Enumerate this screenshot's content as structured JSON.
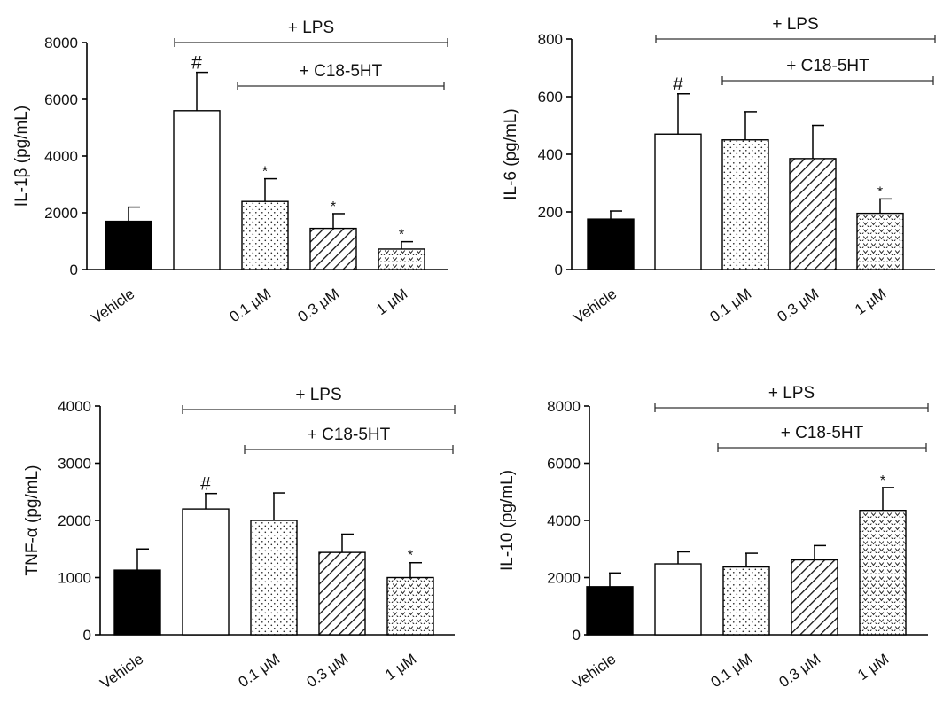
{
  "chart_data": [
    {
      "type": "bar",
      "panel": "top-left",
      "ylabel": "IL-1β (pg/mL)",
      "ylim": [
        0,
        8000
      ],
      "yticks": [
        0,
        2000,
        4000,
        6000,
        8000
      ],
      "categories": [
        "Vehicle",
        "",
        "0.1 μM",
        "0.3 μM",
        "1 μM"
      ],
      "values": [
        1700,
        5600,
        2400,
        1450,
        720
      ],
      "errors": [
        500,
        1350,
        800,
        520,
        260
      ],
      "fills": [
        "solid",
        "white",
        "dots",
        "hatch",
        "hearts"
      ],
      "annotations": [
        "",
        "#",
        "*",
        "*",
        "*"
      ],
      "brackets": [
        {
          "label": "+ LPS",
          "from": 1,
          "to": 4
        },
        {
          "label": "+ C18-5HT",
          "from": 2,
          "to": 4
        }
      ]
    },
    {
      "type": "bar",
      "panel": "top-right",
      "ylabel": "IL-6 (pg/mL)",
      "ylim": [
        0,
        800
      ],
      "yticks": [
        0,
        200,
        400,
        600,
        800
      ],
      "categories": [
        "Vehicle",
        "",
        "0.1 μM",
        "0.3 μM",
        "1 μM"
      ],
      "values": [
        175,
        470,
        450,
        385,
        195
      ],
      "errors": [
        28,
        140,
        98,
        115,
        50
      ],
      "fills": [
        "solid",
        "white",
        "dots",
        "hatch",
        "hearts"
      ],
      "annotations": [
        "",
        "#",
        "",
        "",
        "*"
      ],
      "brackets": [
        {
          "label": "+ LPS",
          "from": 1,
          "to": 4
        },
        {
          "label": "+ C18-5HT",
          "from": 2,
          "to": 4
        }
      ]
    },
    {
      "type": "bar",
      "panel": "bottom-left",
      "ylabel": "TNF-α (pg/mL)",
      "ylim": [
        0,
        4000
      ],
      "yticks": [
        0,
        1000,
        2000,
        3000,
        4000
      ],
      "categories": [
        "Vehicle",
        "",
        "0.1 μM",
        "0.3 μM",
        "1 μM"
      ],
      "values": [
        1130,
        2200,
        2000,
        1440,
        1000
      ],
      "errors": [
        370,
        270,
        480,
        320,
        260
      ],
      "fills": [
        "solid",
        "white",
        "dots",
        "hatch",
        "hearts"
      ],
      "annotations": [
        "",
        "#",
        "",
        "",
        "*"
      ],
      "brackets": [
        {
          "label": "+ LPS",
          "from": 1,
          "to": 4
        },
        {
          "label": "+ C18-5HT",
          "from": 2,
          "to": 4
        }
      ]
    },
    {
      "type": "bar",
      "panel": "bottom-right",
      "ylabel": "IL-10 (pg/mL)",
      "ylim": [
        0,
        8000
      ],
      "yticks": [
        0,
        2000,
        4000,
        6000,
        8000
      ],
      "categories": [
        "Vehicle",
        "",
        "0.1 μM",
        "0.3 μM",
        "1 μM"
      ],
      "values": [
        1680,
        2480,
        2370,
        2620,
        4350
      ],
      "errors": [
        480,
        420,
        480,
        500,
        800
      ],
      "fills": [
        "solid",
        "white",
        "dots",
        "hatch",
        "hearts"
      ],
      "annotations": [
        "",
        "",
        "",
        "",
        "*"
      ],
      "brackets": [
        {
          "label": "+ LPS",
          "from": 1,
          "to": 4
        },
        {
          "label": "+ C18-5HT",
          "from": 2,
          "to": 4
        }
      ]
    }
  ]
}
